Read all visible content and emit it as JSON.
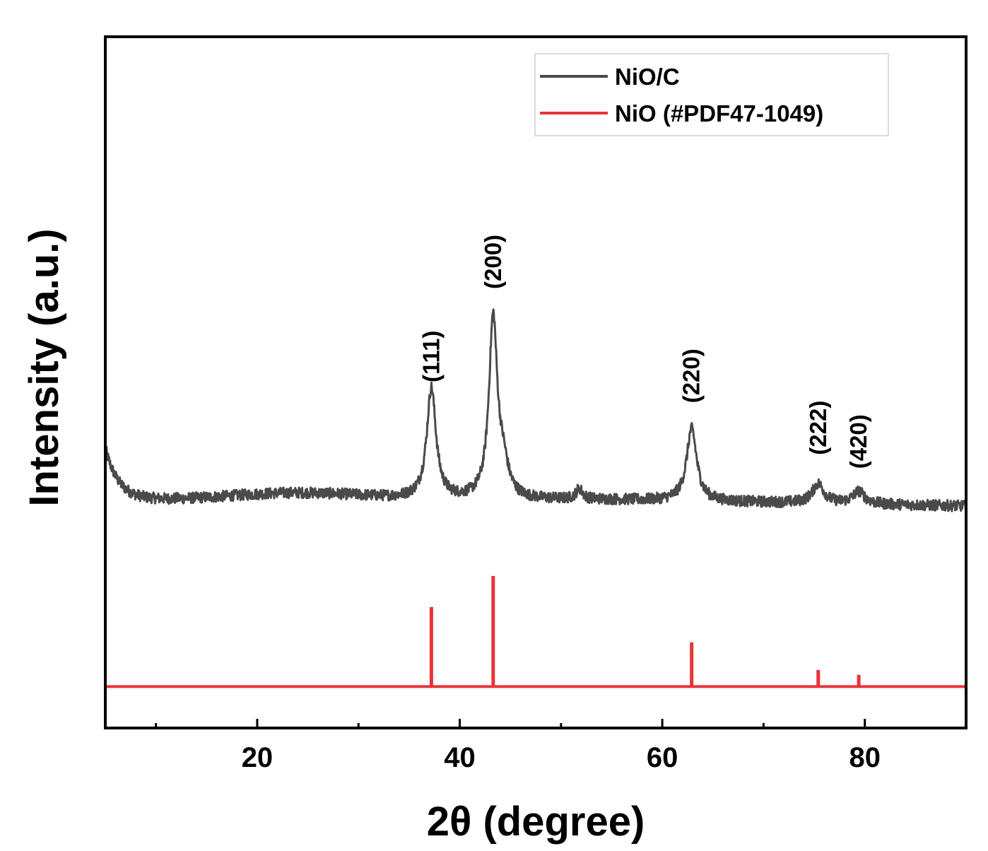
{
  "chart_data": {
    "type": "line",
    "xlabel": "2θ (degree)",
    "ylabel": "Intensity (a.u.)",
    "xlim": [
      5,
      90
    ],
    "ylim": [
      0,
      100
    ],
    "x_ticks": [
      20,
      40,
      60,
      80
    ],
    "x_tick_labels": [
      "20",
      "40",
      "60",
      "80"
    ],
    "x_minor_ticks": [
      10,
      30,
      50,
      70
    ],
    "y_ticks_shown": false,
    "grid": false,
    "legend_position": "top-right",
    "series": [
      {
        "name": "NiO/C",
        "color": "#4a4a4a",
        "style": "line",
        "baseline": 33,
        "peaks": [
          {
            "x": 37.2,
            "height": 16,
            "width": 0.55
          },
          {
            "x": 43.3,
            "height": 26,
            "width": 0.5
          },
          {
            "x": 44.3,
            "height": 4,
            "width": 0.6
          },
          {
            "x": 51.8,
            "height": 1.5,
            "width": 0.4
          },
          {
            "x": 62.9,
            "height": 10.5,
            "width": 0.6
          },
          {
            "x": 75.4,
            "height": 2.8,
            "width": 0.7
          },
          {
            "x": 79.4,
            "height": 1.8,
            "width": 0.7
          }
        ]
      },
      {
        "name": "NiO (#PDF47-1049)",
        "color": "#e8333a",
        "style": "stick",
        "baseline": 6,
        "sticks": [
          {
            "x": 37.2,
            "height": 11.5
          },
          {
            "x": 43.3,
            "height": 16
          },
          {
            "x": 62.9,
            "height": 6.4
          },
          {
            "x": 75.4,
            "height": 2.4
          },
          {
            "x": 79.4,
            "height": 1.7
          }
        ]
      }
    ],
    "annotations": [
      {
        "text": "(111)",
        "x": 37.2,
        "y": 50
      },
      {
        "text": "(200)",
        "x": 43.3,
        "y": 63.5
      },
      {
        "text": "(220)",
        "x": 62.9,
        "y": 47
      },
      {
        "text": "(222)",
        "x": 75.4,
        "y": 39.5
      },
      {
        "text": "(420)",
        "x": 79.4,
        "y": 37.5
      }
    ]
  }
}
